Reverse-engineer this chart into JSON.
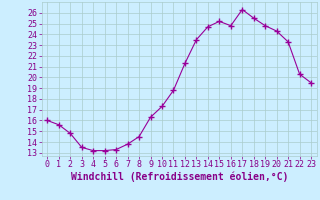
{
  "x": [
    0,
    1,
    2,
    3,
    4,
    5,
    6,
    7,
    8,
    9,
    10,
    11,
    12,
    13,
    14,
    15,
    16,
    17,
    18,
    19,
    20,
    21,
    22,
    23
  ],
  "y": [
    16.0,
    15.6,
    14.8,
    13.5,
    13.2,
    13.2,
    13.3,
    13.8,
    14.5,
    16.3,
    17.3,
    18.8,
    21.3,
    23.5,
    24.7,
    25.2,
    24.8,
    26.3,
    25.5,
    24.8,
    24.3,
    23.3,
    20.3,
    19.5
  ],
  "line_color": "#990099",
  "marker": "+",
  "marker_size": 4,
  "bg_color": "#cceeff",
  "grid_color": "#aacccc",
  "xlabel": "Windchill (Refroidissement éolien,°C)",
  "ylabel_ticks": [
    13,
    14,
    15,
    16,
    17,
    18,
    19,
    20,
    21,
    22,
    23,
    24,
    25,
    26
  ],
  "ylim": [
    12.7,
    27.0
  ],
  "xlim": [
    -0.5,
    23.5
  ],
  "xticks": [
    0,
    1,
    2,
    3,
    4,
    5,
    6,
    7,
    8,
    9,
    10,
    11,
    12,
    13,
    14,
    15,
    16,
    17,
    18,
    19,
    20,
    21,
    22,
    23
  ],
  "xlabel_fontsize": 7,
  "tick_fontsize": 6,
  "label_color": "#880088",
  "title_color": "#880088"
}
